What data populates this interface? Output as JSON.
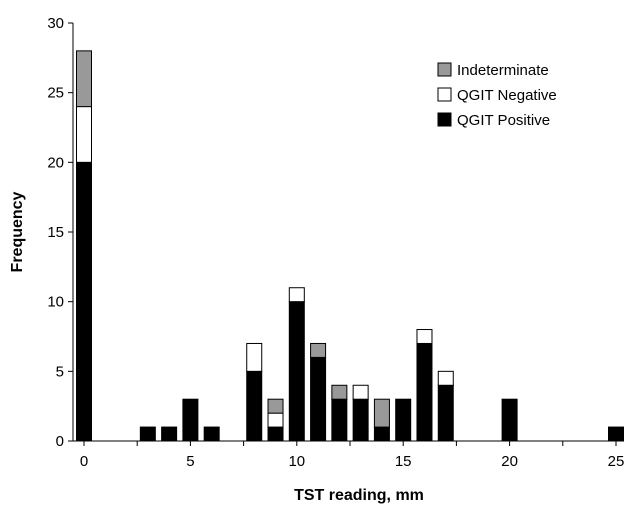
{
  "chart_data": {
    "type": "bar",
    "stacked": true,
    "xlabel": "TST reading, mm",
    "ylabel": "Frequency",
    "xlim": [
      0,
      25
    ],
    "ylim": [
      0,
      30
    ],
    "x_ticks": [
      0,
      5,
      10,
      15,
      20,
      25
    ],
    "y_ticks": [
      0,
      5,
      10,
      15,
      20,
      25,
      30
    ],
    "grid": false,
    "legend_position": "top-right",
    "x": [
      0,
      3,
      4,
      5,
      6,
      8,
      9,
      10,
      11,
      12,
      13,
      14,
      15,
      16,
      17,
      20,
      25
    ],
    "series": [
      {
        "name": "QGIT Positive",
        "color": "#000000",
        "values": [
          20,
          1,
          1,
          3,
          1,
          5,
          1,
          10,
          6,
          3,
          3,
          1,
          3,
          7,
          4,
          3,
          1
        ]
      },
      {
        "name": "QGIT Negative",
        "color": "#ffffff",
        "values": [
          4,
          0,
          0,
          0,
          0,
          2,
          1,
          1,
          0,
          0,
          1,
          0,
          0,
          1,
          1,
          0,
          0
        ]
      },
      {
        "name": "Indeterminate",
        "color": "#999999",
        "values": [
          4,
          0,
          0,
          0,
          0,
          0,
          1,
          0,
          1,
          1,
          0,
          2,
          0,
          0,
          0,
          0,
          0
        ]
      }
    ],
    "legend_order": [
      "Indeterminate",
      "QGIT Negative",
      "QGIT Positive"
    ]
  }
}
